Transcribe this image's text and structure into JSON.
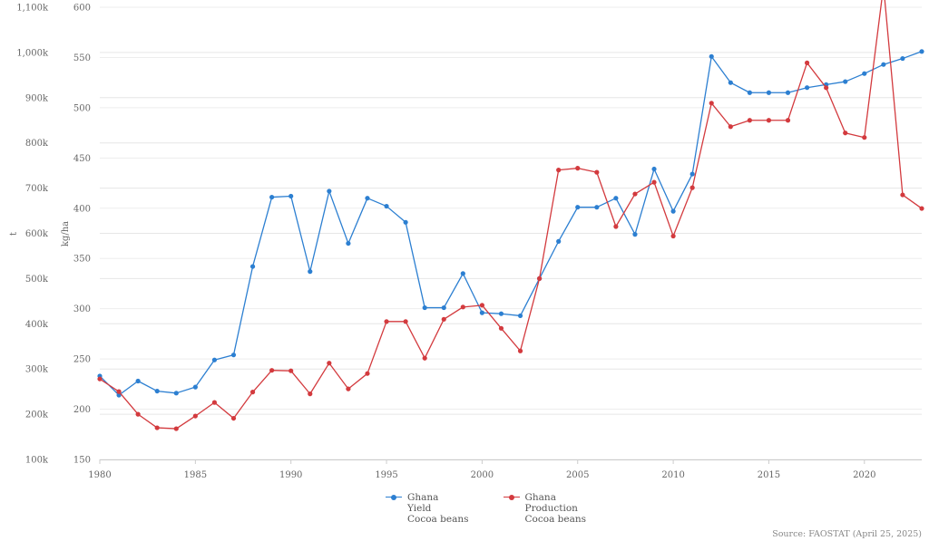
{
  "chart_data": {
    "type": "line",
    "x": [
      1980,
      1981,
      1982,
      1983,
      1984,
      1985,
      1986,
      1987,
      1988,
      1989,
      1990,
      1991,
      1992,
      1993,
      1994,
      1995,
      1996,
      1997,
      1998,
      1999,
      2000,
      2001,
      2002,
      2003,
      2004,
      2005,
      2006,
      2007,
      2008,
      2009,
      2010,
      2011,
      2012,
      2013,
      2014,
      2015,
      2016,
      2017,
      2018,
      2019,
      2020,
      2021,
      2022,
      2023
    ],
    "x_ticks": [
      1980,
      1985,
      1990,
      1995,
      2000,
      2005,
      2010,
      2015,
      2020
    ],
    "xlim": [
      1980,
      2023
    ],
    "left_axis": {
      "label": "t",
      "ylim": [
        100000,
        1100000
      ],
      "ticks": [
        100000,
        200000,
        300000,
        400000,
        500000,
        600000,
        700000,
        800000,
        900000,
        1000000,
        1100000
      ],
      "tick_labels": [
        "100k",
        "200k",
        "300k",
        "400k",
        "500k",
        "600k",
        "700k",
        "800k",
        "900k",
        "1,000k",
        "1,100k"
      ]
    },
    "right_axis": {
      "label": "kg/ha",
      "ylim": [
        150,
        600
      ],
      "ticks": [
        150,
        200,
        250,
        300,
        350,
        400,
        450,
        500,
        550,
        600
      ],
      "tick_labels": [
        "150",
        "200",
        "250",
        "300",
        "350",
        "400",
        "450",
        "500",
        "550",
        "600"
      ]
    },
    "series": [
      {
        "name": "Ghana Yield Cocoa beans",
        "legend_lines": [
          "Ghana",
          "Yield",
          "Cocoa beans"
        ],
        "axis": "right",
        "color": "#2c7fd1",
        "values": [
          233,
          214,
          228,
          218,
          216,
          222,
          249,
          254,
          342,
          411,
          412,
          337,
          417,
          365,
          410,
          402,
          386,
          301,
          301,
          335,
          296,
          295,
          293,
          330,
          367,
          401,
          401,
          410,
          374,
          439,
          397,
          434,
          551,
          525,
          515,
          515,
          515,
          520,
          523,
          526,
          534,
          543,
          549,
          556
        ]
      },
      {
        "name": "Ghana Production Cocoa beans",
        "legend_lines": [
          "Ghana",
          "Production",
          "Cocoa beans"
        ],
        "axis": "left",
        "color": "#d33a3e",
        "values": [
          278,
          250,
          200,
          170,
          168,
          196,
          226,
          191,
          249,
          297,
          296,
          245,
          313,
          256,
          290,
          405,
          405,
          324,
          410,
          437,
          441,
          390,
          340,
          500,
          740,
          744,
          735,
          615,
          687,
          713,
          594,
          701,
          888,
          836,
          850,
          850,
          850,
          977,
          922,
          822,
          812,
          1147,
          685,
          655
        ],
        "value_unit": "k t"
      }
    ],
    "grid": true,
    "source": "Source: FAOSTAT (April 25, 2025)"
  }
}
